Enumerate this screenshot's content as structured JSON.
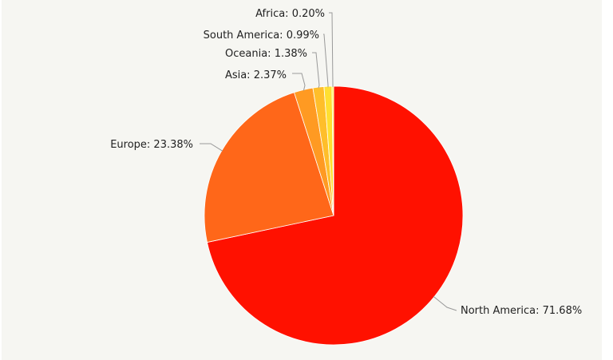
{
  "chart_data": {
    "type": "pie",
    "slices": [
      {
        "label": "North America",
        "value": 71.68,
        "display": "North America: 71.68%",
        "color": "#ff1100"
      },
      {
        "label": "Europe",
        "value": 23.38,
        "display": "Europe: 23.38%",
        "color": "#ff6719"
      },
      {
        "label": "Asia",
        "value": 2.37,
        "display": "Asia: 2.37%",
        "color": "#ff9a22"
      },
      {
        "label": "Oceania",
        "value": 1.38,
        "display": "Oceania: 1.38%",
        "color": "#ffbe2a"
      },
      {
        "label": "South America",
        "value": 0.99,
        "display": "South America: 0.99%",
        "color": "#ffdf30"
      },
      {
        "label": "Africa",
        "value": 0.2,
        "display": "Africa: 0.20%",
        "color": "#ffff35"
      }
    ],
    "start_angle_deg": 0,
    "direction": "clockwise",
    "legend": "none",
    "unit": "%"
  }
}
